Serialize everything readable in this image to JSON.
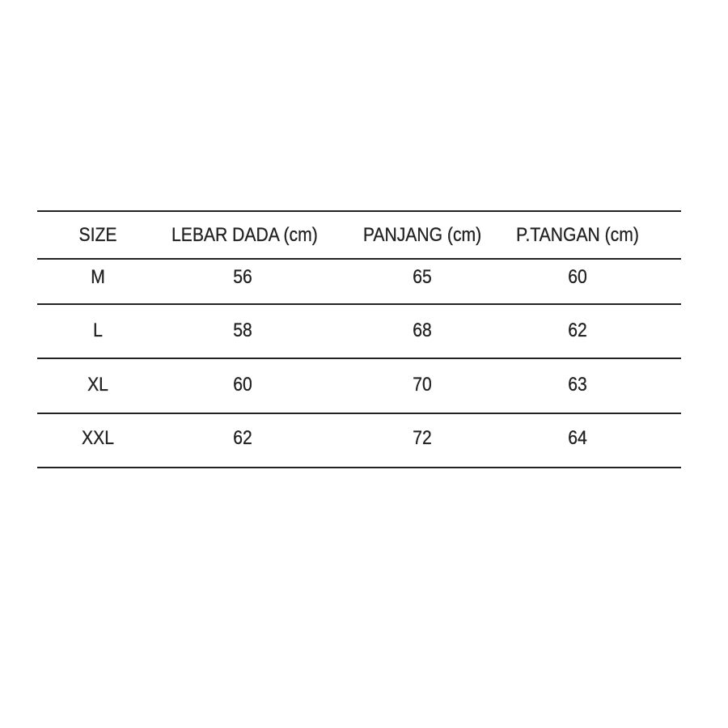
{
  "table": {
    "headers": [
      "SIZE",
      "LEBAR DADA (cm)",
      "PANJANG (cm)",
      "P.TANGAN (cm)"
    ],
    "rows": [
      [
        "M",
        "56",
        "65",
        "60"
      ],
      [
        "L",
        "58",
        "68",
        "62"
      ],
      [
        "XL",
        "60",
        "70",
        "63"
      ],
      [
        "XXL",
        "62",
        "72",
        "64"
      ]
    ]
  }
}
